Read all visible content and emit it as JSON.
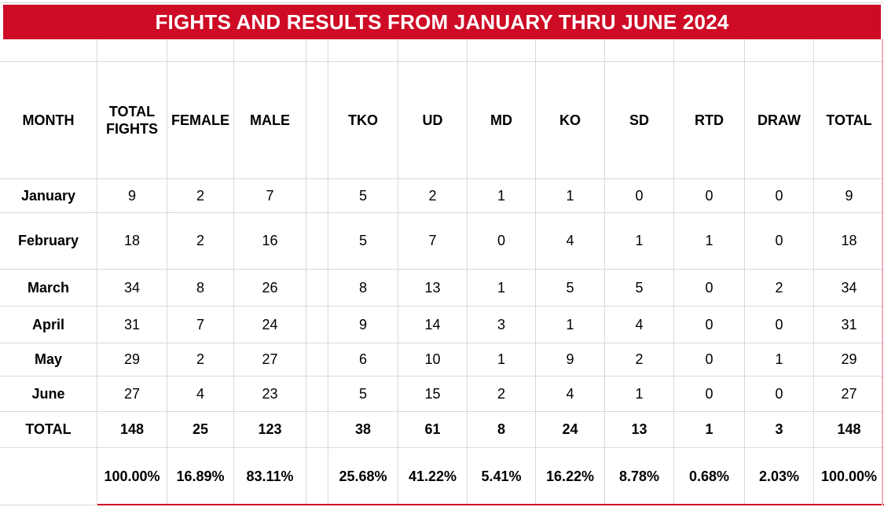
{
  "title": "FIGHTS AND RESULTS FROM JANUARY THRU JUNE 2024",
  "colors": {
    "banner_red": "#ce0b25",
    "grid_line": "#d9d9d9",
    "right_edge_pink": "#eeb0b9",
    "text": "#000000",
    "background": "#ffffff"
  },
  "table": {
    "columns": [
      "MONTH",
      "TOTAL FIGHTS",
      "FEMALE",
      "MALE",
      "",
      "TKO",
      "UD",
      "MD",
      "KO",
      "SD",
      "RTD",
      "DRAW",
      "TOTAL"
    ],
    "rows": [
      {
        "type": "data",
        "cells": [
          "January",
          "9",
          "2",
          "7",
          "",
          "5",
          "2",
          "1",
          "1",
          "0",
          "0",
          "0",
          "9"
        ]
      },
      {
        "type": "data",
        "cells": [
          "February",
          "18",
          "2",
          "16",
          "",
          "5",
          "7",
          "0",
          "4",
          "1",
          "1",
          "0",
          "18"
        ]
      },
      {
        "type": "data",
        "cells": [
          "March",
          "34",
          "8",
          "26",
          "",
          "8",
          "13",
          "1",
          "5",
          "5",
          "0",
          "2",
          "34"
        ]
      },
      {
        "type": "data",
        "cells": [
          "April",
          "31",
          "7",
          "24",
          "",
          "9",
          "14",
          "3",
          "1",
          "4",
          "0",
          "0",
          "31"
        ]
      },
      {
        "type": "data",
        "cells": [
          "May",
          "29",
          "2",
          "27",
          "",
          "6",
          "10",
          "1",
          "9",
          "2",
          "0",
          "1",
          "29"
        ]
      },
      {
        "type": "data",
        "cells": [
          "June",
          "27",
          "4",
          "23",
          "",
          "5",
          "15",
          "2",
          "4",
          "1",
          "0",
          "0",
          "27"
        ]
      },
      {
        "type": "total",
        "cells": [
          "TOTAL",
          "148",
          "25",
          "123",
          "",
          "38",
          "61",
          "8",
          "24",
          "13",
          "1",
          "3",
          "148"
        ]
      },
      {
        "type": "percent",
        "cells": [
          "",
          "100.00%",
          "16.89%",
          "83.11%",
          "",
          "25.68%",
          "41.22%",
          "5.41%",
          "16.22%",
          "8.78%",
          "0.68%",
          "2.03%",
          "100.00%"
        ]
      }
    ]
  }
}
